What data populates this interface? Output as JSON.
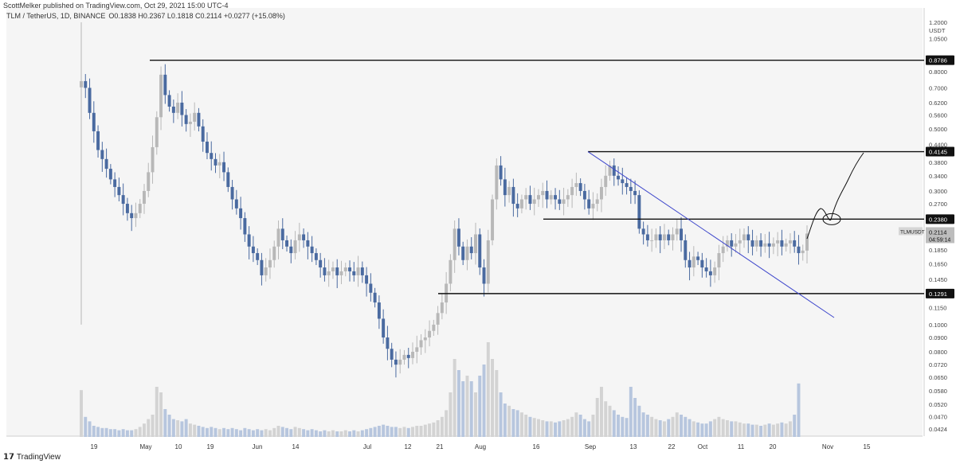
{
  "header": {
    "publisher": "ScottMelker published on TradingView.com, Oct 29, 2021 15:00 UTC-4",
    "symbol": "TLM / TetherUS, 1D, BINANCE",
    "ohlc": "O0.1838 H0.2367 L0.1818 C0.2114 +0.0277 (+15.08%)"
  },
  "footer": {
    "brand": "TradingView"
  },
  "chart_data": {
    "type": "candlestick",
    "title": "TLM / TetherUS, 1D, BINANCE",
    "y_scale": "log",
    "ylim": [
      0.04,
      1.35
    ],
    "axis_unit": "USDT",
    "x_tick_labels": [
      "19",
      "May",
      "10",
      "19",
      "Jun",
      "14",
      "Jul",
      "12",
      "21",
      "Aug",
      "16",
      "Sep",
      "13",
      "22",
      "Oct",
      "11",
      "20",
      "Nov",
      "15"
    ],
    "y_tick_labels": [
      "1.3500",
      "1.2000",
      "1.0500",
      "0.9000",
      "0.8000",
      "0.7000",
      "0.6200",
      "0.5600",
      "0.5000",
      "0.4400",
      "0.3800",
      "0.3400",
      "0.3000",
      "0.2700",
      "0.2100",
      "0.1850",
      "0.1650",
      "0.1450",
      "0.1300",
      "0.1150",
      "0.1000",
      "0.0900",
      "0.0800",
      "0.0720",
      "0.0650",
      "0.0580",
      "0.0520",
      "0.0470",
      "0.0424"
    ],
    "levels": [
      {
        "label": "0.8786",
        "value": 0.8786
      },
      {
        "label": "0.4145",
        "value": 0.4145
      },
      {
        "label": "0.2380",
        "value": 0.238
      },
      {
        "label": "0.1291",
        "value": 0.1291
      }
    ],
    "price_tag": {
      "symbol": "TLMUSDT",
      "price": "0.2114",
      "countdown": "04:59:14"
    },
    "closes": [
      0.74,
      0.7,
      0.57,
      0.49,
      0.42,
      0.39,
      0.36,
      0.33,
      0.31,
      0.29,
      0.27,
      0.25,
      0.24,
      0.25,
      0.27,
      0.3,
      0.35,
      0.43,
      0.55,
      0.78,
      0.66,
      0.6,
      0.57,
      0.62,
      0.56,
      0.52,
      0.53,
      0.57,
      0.51,
      0.45,
      0.41,
      0.39,
      0.37,
      0.38,
      0.35,
      0.31,
      0.28,
      0.26,
      0.24,
      0.21,
      0.19,
      0.18,
      0.17,
      0.15,
      0.16,
      0.17,
      0.19,
      0.22,
      0.2,
      0.19,
      0.18,
      0.2,
      0.21,
      0.2,
      0.19,
      0.18,
      0.17,
      0.16,
      0.15,
      0.155,
      0.16,
      0.15,
      0.155,
      0.16,
      0.155,
      0.15,
      0.16,
      0.15,
      0.14,
      0.13,
      0.12,
      0.105,
      0.09,
      0.082,
      0.075,
      0.072,
      0.075,
      0.078,
      0.076,
      0.08,
      0.083,
      0.088,
      0.09,
      0.095,
      0.1,
      0.11,
      0.12,
      0.14,
      0.17,
      0.22,
      0.19,
      0.17,
      0.19,
      0.18,
      0.21,
      0.16,
      0.14,
      0.2,
      0.28,
      0.37,
      0.33,
      0.29,
      0.31,
      0.27,
      0.26,
      0.28,
      0.29,
      0.27,
      0.28,
      0.29,
      0.3,
      0.28,
      0.29,
      0.28,
      0.27,
      0.28,
      0.29,
      0.31,
      0.32,
      0.3,
      0.28,
      0.26,
      0.27,
      0.28,
      0.31,
      0.34,
      0.37,
      0.34,
      0.33,
      0.32,
      0.31,
      0.3,
      0.29,
      0.22,
      0.21,
      0.2,
      0.2,
      0.21,
      0.2,
      0.21,
      0.2,
      0.21,
      0.22,
      0.2,
      0.17,
      0.16,
      0.175,
      0.17,
      0.16,
      0.155,
      0.15,
      0.16,
      0.18,
      0.19,
      0.2,
      0.19,
      0.195,
      0.2,
      0.21,
      0.2,
      0.19,
      0.2,
      0.19,
      0.195,
      0.19,
      0.195,
      0.2,
      0.19,
      0.195,
      0.2,
      0.19,
      0.18,
      0.1838,
      0.2114
    ],
    "volume": [
      0.42,
      0.18,
      0.14,
      0.1,
      0.09,
      0.08,
      0.08,
      0.07,
      0.07,
      0.06,
      0.07,
      0.06,
      0.06,
      0.07,
      0.09,
      0.12,
      0.16,
      0.2,
      0.45,
      0.4,
      0.25,
      0.2,
      0.16,
      0.15,
      0.14,
      0.16,
      0.12,
      0.11,
      0.1,
      0.09,
      0.08,
      0.09,
      0.08,
      0.07,
      0.08,
      0.07,
      0.08,
      0.07,
      0.06,
      0.08,
      0.07,
      0.06,
      0.07,
      0.06,
      0.07,
      0.06,
      0.08,
      0.1,
      0.09,
      0.08,
      0.07,
      0.09,
      0.08,
      0.07,
      0.06,
      0.07,
      0.06,
      0.05,
      0.06,
      0.05,
      0.06,
      0.05,
      0.05,
      0.06,
      0.05,
      0.06,
      0.05,
      0.06,
      0.07,
      0.08,
      0.09,
      0.1,
      0.11,
      0.1,
      0.09,
      0.09,
      0.08,
      0.09,
      0.08,
      0.09,
      0.1,
      0.1,
      0.11,
      0.12,
      0.13,
      0.15,
      0.18,
      0.24,
      0.4,
      0.7,
      0.6,
      0.5,
      0.55,
      0.5,
      0.4,
      0.55,
      0.65,
      0.85,
      0.7,
      0.6,
      0.4,
      0.3,
      0.28,
      0.25,
      0.24,
      0.22,
      0.2,
      0.18,
      0.17,
      0.16,
      0.15,
      0.14,
      0.14,
      0.13,
      0.14,
      0.15,
      0.16,
      0.18,
      0.22,
      0.2,
      0.16,
      0.14,
      0.2,
      0.35,
      0.45,
      0.32,
      0.28,
      0.24,
      0.2,
      0.18,
      0.17,
      0.45,
      0.35,
      0.28,
      0.22,
      0.2,
      0.18,
      0.16,
      0.15,
      0.14,
      0.16,
      0.18,
      0.22,
      0.2,
      0.18,
      0.16,
      0.14,
      0.13,
      0.12,
      0.12,
      0.14,
      0.16,
      0.18,
      0.16,
      0.15,
      0.14,
      0.14,
      0.13,
      0.12,
      0.12,
      0.11,
      0.11,
      0.1,
      0.11,
      0.12,
      0.11,
      0.12,
      0.13,
      0.12,
      0.14,
      0.2,
      0.48
    ]
  }
}
